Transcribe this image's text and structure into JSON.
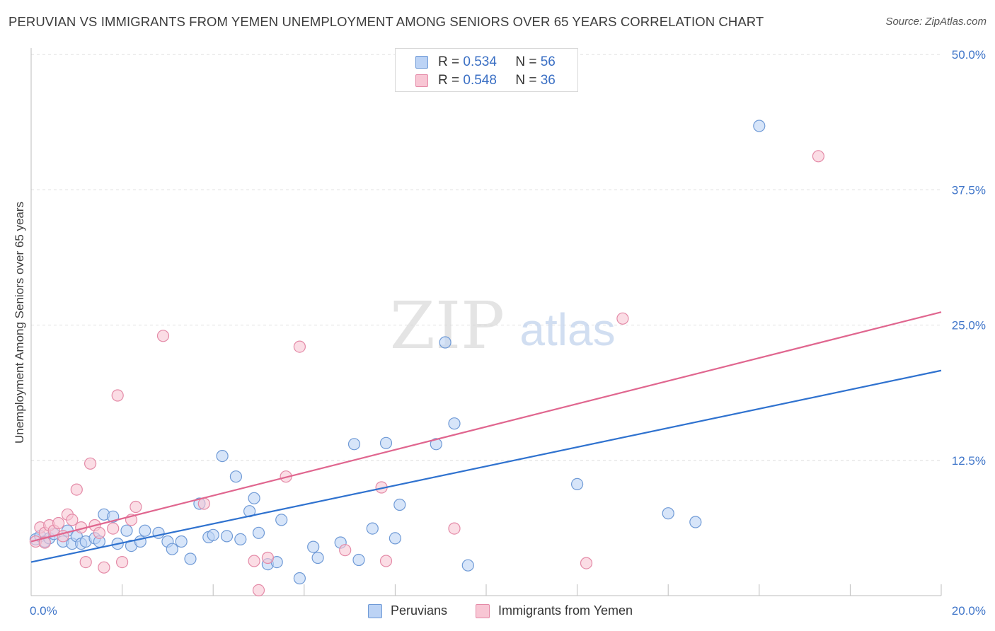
{
  "title": "PERUVIAN VS IMMIGRANTS FROM YEMEN UNEMPLOYMENT AMONG SENIORS OVER 65 YEARS CORRELATION CHART",
  "source": "Source: ZipAtlas.com",
  "watermark": {
    "zip": "ZIP",
    "atlas": "atlas"
  },
  "legend": {
    "r_label": "R =",
    "n_label": "N =",
    "rows": [
      {
        "name": "Peruvians",
        "r": "0.534",
        "n": "56"
      },
      {
        "name": "Immigrants from Yemen",
        "r": "0.548",
        "n": "36"
      }
    ]
  },
  "colors": {
    "blue_fill": "#bcd3f5",
    "blue_stroke": "#6f9ad6",
    "blue_line": "#2f72cf",
    "pink_fill": "#f8c6d4",
    "pink_stroke": "#e48aa7",
    "pink_line": "#e0668f",
    "tick_text": "#3f75c9",
    "grid": "#dedede"
  },
  "chart_data": {
    "type": "scatter",
    "title": "PERUVIAN VS IMMIGRANTS FROM YEMEN UNEMPLOYMENT AMONG SENIORS OVER 65 YEARS CORRELATION CHART",
    "xlabel": "",
    "ylabel": "Unemployment Among Seniors over 65 years",
    "xlim": [
      0,
      20
    ],
    "ylim": [
      0,
      50
    ],
    "x_tick_labels": [
      "0.0%",
      "20.0%"
    ],
    "y_ticks": [
      12.5,
      25.0,
      37.5,
      50.0
    ],
    "y_tick_labels": [
      "12.5%",
      "25.0%",
      "37.5%",
      "50.0%"
    ],
    "grid": true,
    "legend_position": "top-center",
    "series": [
      {
        "name": "Peruvians",
        "points": [
          [
            0.1,
            5.2
          ],
          [
            0.2,
            5.5
          ],
          [
            0.3,
            5.0
          ],
          [
            0.4,
            5.3
          ],
          [
            0.5,
            5.7
          ],
          [
            0.7,
            5.0
          ],
          [
            0.8,
            6.0
          ],
          [
            0.9,
            4.8
          ],
          [
            1.0,
            5.5
          ],
          [
            1.1,
            4.8
          ],
          [
            1.2,
            5.0
          ],
          [
            1.4,
            5.3
          ],
          [
            1.5,
            5.0
          ],
          [
            1.6,
            7.5
          ],
          [
            1.8,
            7.3
          ],
          [
            1.9,
            4.8
          ],
          [
            2.1,
            6.0
          ],
          [
            2.2,
            4.6
          ],
          [
            2.4,
            5.0
          ],
          [
            2.5,
            6.0
          ],
          [
            2.8,
            5.8
          ],
          [
            3.0,
            5.0
          ],
          [
            3.1,
            4.3
          ],
          [
            3.3,
            5.0
          ],
          [
            3.5,
            3.4
          ],
          [
            3.7,
            8.5
          ],
          [
            3.9,
            5.4
          ],
          [
            4.0,
            5.6
          ],
          [
            4.2,
            12.9
          ],
          [
            4.3,
            5.5
          ],
          [
            4.5,
            11.0
          ],
          [
            4.6,
            5.2
          ],
          [
            4.8,
            7.8
          ],
          [
            4.9,
            9.0
          ],
          [
            5.0,
            5.8
          ],
          [
            5.2,
            2.9
          ],
          [
            5.4,
            3.1
          ],
          [
            5.5,
            7.0
          ],
          [
            5.9,
            1.6
          ],
          [
            6.2,
            4.5
          ],
          [
            6.3,
            3.5
          ],
          [
            6.8,
            4.9
          ],
          [
            7.1,
            14.0
          ],
          [
            7.2,
            3.3
          ],
          [
            7.5,
            6.2
          ],
          [
            7.8,
            14.1
          ],
          [
            8.0,
            5.3
          ],
          [
            8.1,
            8.4
          ],
          [
            8.9,
            14.0
          ],
          [
            9.1,
            23.4
          ],
          [
            9.3,
            15.9
          ],
          [
            9.6,
            2.8
          ],
          [
            12.0,
            10.3
          ],
          [
            14.0,
            7.6
          ],
          [
            14.6,
            6.8
          ],
          [
            16.0,
            43.4
          ]
        ],
        "trend": {
          "x": [
            0,
            20
          ],
          "y": [
            3.1,
            20.8
          ]
        }
      },
      {
        "name": "Immigrants from Yemen",
        "points": [
          [
            0.1,
            5.0
          ],
          [
            0.2,
            6.3
          ],
          [
            0.3,
            5.8
          ],
          [
            0.4,
            6.5
          ],
          [
            0.5,
            6.0
          ],
          [
            0.6,
            6.7
          ],
          [
            0.7,
            5.5
          ],
          [
            0.8,
            7.5
          ],
          [
            0.9,
            7.0
          ],
          [
            1.0,
            9.8
          ],
          [
            1.1,
            6.3
          ],
          [
            1.2,
            3.1
          ],
          [
            1.3,
            12.2
          ],
          [
            1.4,
            6.5
          ],
          [
            1.5,
            5.8
          ],
          [
            1.6,
            2.6
          ],
          [
            1.8,
            6.2
          ],
          [
            1.9,
            18.5
          ],
          [
            2.0,
            3.1
          ],
          [
            2.2,
            7.0
          ],
          [
            2.3,
            8.2
          ],
          [
            2.9,
            24.0
          ],
          [
            3.8,
            8.5
          ],
          [
            4.9,
            3.2
          ],
          [
            5.0,
            0.5
          ],
          [
            5.2,
            3.5
          ],
          [
            5.6,
            11.0
          ],
          [
            5.9,
            23.0
          ],
          [
            6.9,
            4.2
          ],
          [
            7.7,
            10.0
          ],
          [
            7.8,
            3.2
          ],
          [
            9.3,
            6.2
          ],
          [
            12.2,
            3.0
          ],
          [
            13.0,
            25.6
          ],
          [
            17.3,
            40.6
          ],
          [
            0.3,
            4.9
          ]
        ],
        "trend": {
          "x": [
            0,
            20
          ],
          "y": [
            5.0,
            26.2
          ]
        }
      }
    ]
  }
}
